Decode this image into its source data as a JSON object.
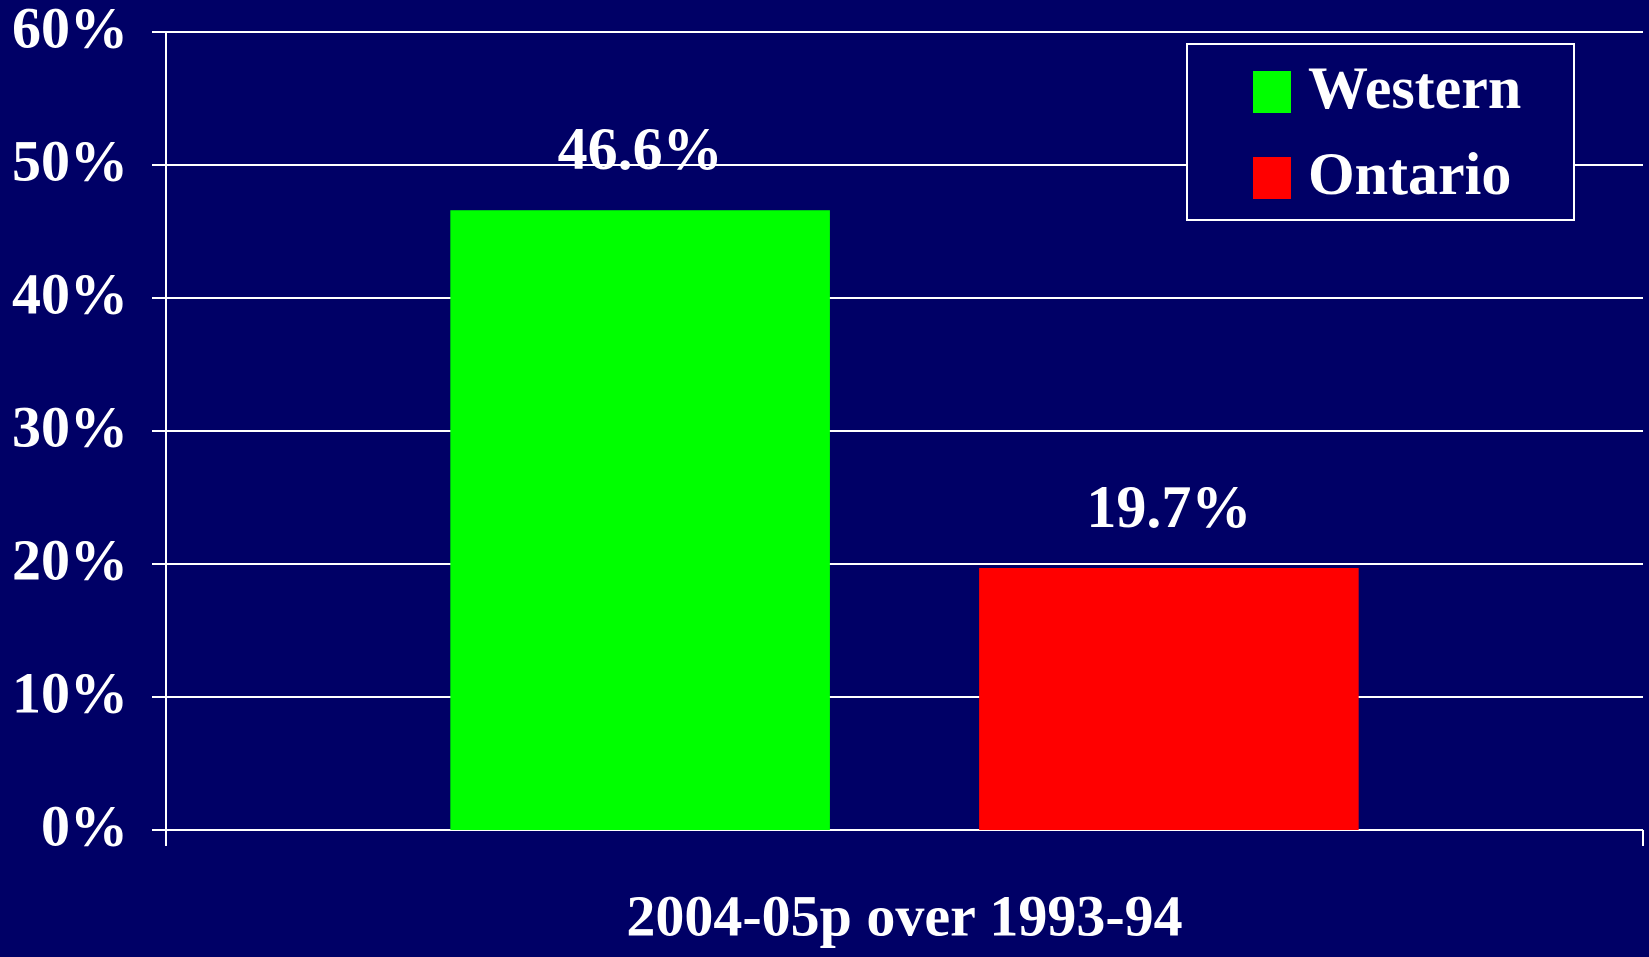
{
  "chart_data": {
    "type": "bar",
    "categories": [
      "2004-05p over 1993-94"
    ],
    "series": [
      {
        "name": "Western",
        "color": "#00ff00",
        "values": [
          46.6
        ],
        "value_labels": [
          "46.6%"
        ]
      },
      {
        "name": "Ontario",
        "color": "#ff0000",
        "values": [
          19.7
        ],
        "value_labels": [
          "19.7%"
        ]
      }
    ],
    "ylim": [
      0,
      60
    ],
    "yticks": [
      {
        "value": 0,
        "label": "0%"
      },
      {
        "value": 10,
        "label": "10%"
      },
      {
        "value": 20,
        "label": "20%"
      },
      {
        "value": 30,
        "label": "30%"
      },
      {
        "value": 40,
        "label": "40%"
      },
      {
        "value": 50,
        "label": "50%"
      },
      {
        "value": 60,
        "label": "60%"
      }
    ],
    "grid": true,
    "legend": "top-right"
  }
}
